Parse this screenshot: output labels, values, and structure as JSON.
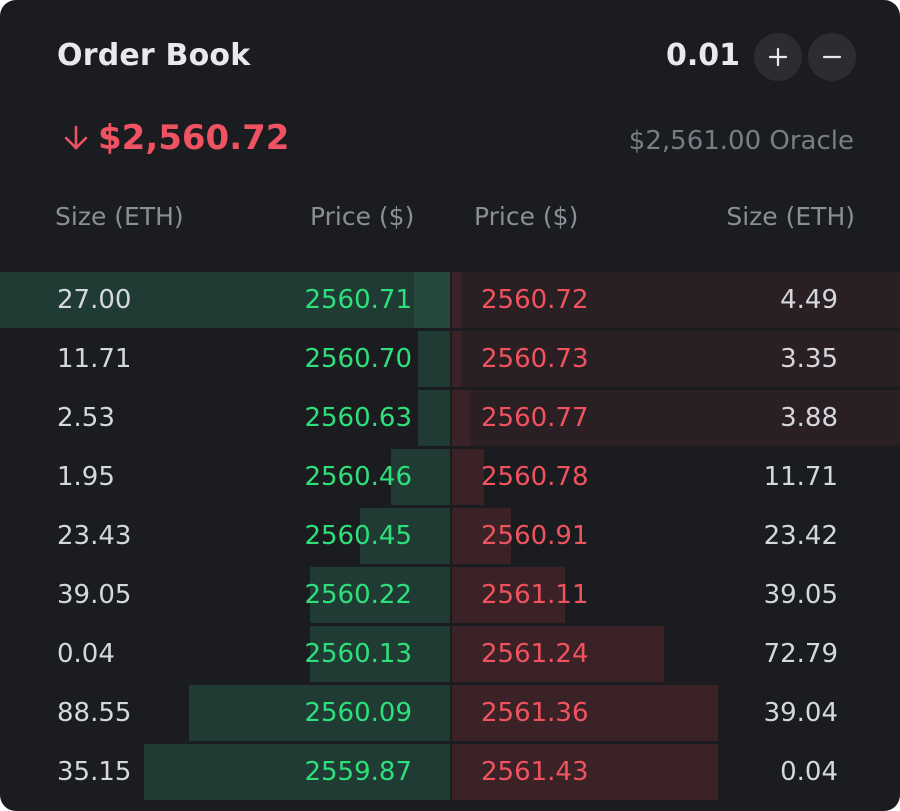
{
  "header": {
    "title": "Order Book",
    "tick_size": "0.01",
    "increment_icon": "plus-icon",
    "decrement_icon": "minus-icon"
  },
  "price": {
    "last": "$2,560.72",
    "direction_icon": "arrow-down-icon",
    "oracle": "$2,561.00 Oracle"
  },
  "columns": {
    "bid_size": "Size (ETH)",
    "bid_price": "Price ($)",
    "ask_price": "Price ($)",
    "ask_size": "Size (ETH)"
  },
  "colors": {
    "bid": "#2ee07b",
    "ask": "#f0535f",
    "bid_depth": "#1f3b33",
    "ask_depth": "#3a2227",
    "panel": "#1b1c20"
  },
  "rows": [
    {
      "bid_size": "27.00",
      "bid_price": "2560.71",
      "ask_price": "2560.72",
      "ask_size": "4.49",
      "bid_depth": 0.07,
      "ask_depth": 0.02
    },
    {
      "bid_size": "11.71",
      "bid_price": "2560.70",
      "ask_price": "2560.73",
      "ask_size": "3.35",
      "bid_depth": 0.07,
      "ask_depth": 0.02
    },
    {
      "bid_size": "2.53",
      "bid_price": "2560.63",
      "ask_price": "2560.77",
      "ask_size": "3.88",
      "bid_depth": 0.07,
      "ask_depth": 0.04
    },
    {
      "bid_size": "1.95",
      "bid_price": "2560.46",
      "ask_price": "2560.78",
      "ask_size": "11.71",
      "bid_depth": 0.13,
      "ask_depth": 0.07
    },
    {
      "bid_size": "23.43",
      "bid_price": "2560.45",
      "ask_price": "2560.91",
      "ask_size": "23.42",
      "bid_depth": 0.2,
      "ask_depth": 0.13
    },
    {
      "bid_size": "39.05",
      "bid_price": "2560.22",
      "ask_price": "2561.11",
      "ask_size": "39.05",
      "bid_depth": 0.31,
      "ask_depth": 0.25
    },
    {
      "bid_size": "0.04",
      "bid_price": "2560.13",
      "ask_price": "2561.24",
      "ask_size": "72.79",
      "bid_depth": 0.31,
      "ask_depth": 0.47
    },
    {
      "bid_size": "88.55",
      "bid_price": "2560.09",
      "ask_price": "2561.36",
      "ask_size": "39.04",
      "bid_depth": 0.58,
      "ask_depth": 0.59
    },
    {
      "bid_size": "35.15",
      "bid_price": "2559.87",
      "ask_price": "2561.43",
      "ask_size": "0.04",
      "bid_depth": 0.68,
      "ask_depth": 0.59
    }
  ]
}
